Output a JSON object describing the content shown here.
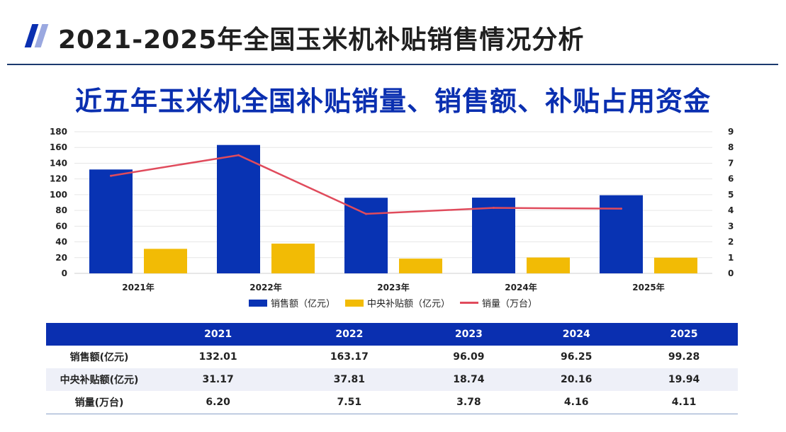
{
  "header": {
    "title": "2021-2025年全国玉米机补贴销售情况分析"
  },
  "colors": {
    "brand_blue": "#0a2fb0",
    "bar_blue": "#0833b3",
    "bar_gold": "#f2bb05",
    "line_red": "#e04b5c"
  },
  "chart_data": {
    "type": "bar",
    "title": "近五年玉米机全国补贴销量、销售额、补贴占用资金",
    "categories": [
      "2021年",
      "2022年",
      "2023年",
      "2024年",
      "2025年"
    ],
    "series": [
      {
        "name": "销售额（亿元）",
        "kind": "bar",
        "axis": "left",
        "color": "#0833b3",
        "values": [
          132.01,
          163.17,
          96.09,
          96.25,
          99.28
        ]
      },
      {
        "name": "中央补贴额（亿元）",
        "kind": "bar",
        "axis": "left",
        "color": "#f2bb05",
        "values": [
          31.17,
          37.81,
          18.74,
          20.16,
          19.94
        ]
      },
      {
        "name": "销量（万台）",
        "kind": "line",
        "axis": "right",
        "color": "#e04b5c",
        "values": [
          6.2,
          7.51,
          3.78,
          4.16,
          4.11
        ]
      }
    ],
    "ylim_left": [
      0,
      180
    ],
    "yticks_left": [
      "0",
      "20",
      "40",
      "60",
      "80",
      "100",
      "120",
      "140",
      "160",
      "180"
    ],
    "ylim_right": [
      0,
      9
    ],
    "yticks_right": [
      "0",
      "1",
      "2",
      "3",
      "4",
      "5",
      "6",
      "7",
      "8",
      "9"
    ],
    "grid": true,
    "legend_position": "bottom"
  },
  "table": {
    "headers": [
      "",
      "2021",
      "2022",
      "2023",
      "2024",
      "2025"
    ],
    "rows": [
      {
        "label": "销售额(亿元)",
        "values": [
          "132.01",
          "163.17",
          "96.09",
          "96.25",
          "99.28"
        ]
      },
      {
        "label": "中央补贴额(亿元)",
        "values": [
          "31.17",
          "37.81",
          "18.74",
          "20.16",
          "19.94"
        ]
      },
      {
        "label": "销量(万台)",
        "values": [
          "6.20",
          "7.51",
          "3.78",
          "4.16",
          "4.11"
        ]
      }
    ]
  }
}
